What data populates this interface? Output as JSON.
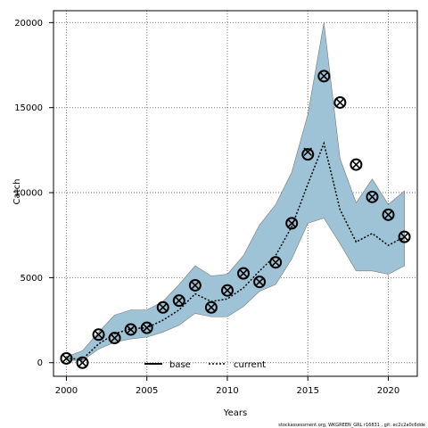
{
  "chart_data": {
    "type": "line",
    "title": "",
    "xlabel": "Years",
    "ylabel": "Catch",
    "xlim": [
      1999.2,
      2021.8
    ],
    "ylim": [
      -800,
      20700
    ],
    "x_ticks": [
      2000,
      2005,
      2010,
      2015,
      2020
    ],
    "y_ticks": [
      0,
      5000,
      10000,
      15000,
      20000
    ],
    "grid": true,
    "legend_position": "bottom-center",
    "colors": {
      "band": "#9fc3d6",
      "band_edge": "#777777",
      "line": "#000000",
      "grid": "#777777"
    },
    "years": [
      2000,
      2001,
      2002,
      2003,
      2004,
      2005,
      2006,
      2007,
      2008,
      2009,
      2010,
      2011,
      2012,
      2013,
      2014,
      2015,
      2016,
      2017,
      2018,
      2019,
      2020,
      2021
    ],
    "series": [
      {
        "name": "base",
        "style": "solid",
        "values": []
      },
      {
        "name": "current",
        "style": "dotted",
        "values": [
          250,
          200,
          1100,
          1700,
          2000,
          2050,
          2500,
          3100,
          4050,
          3600,
          3750,
          4400,
          5400,
          6300,
          8000,
          10500,
          12900,
          9000,
          7100,
          7600,
          6900,
          7400
        ]
      }
    ],
    "band": {
      "lower": [
        150,
        120,
        800,
        1200,
        1400,
        1500,
        1800,
        2200,
        2900,
        2700,
        2700,
        3300,
        4200,
        4600,
        6100,
        8200,
        8500,
        7000,
        5400,
        5400,
        5200,
        5700
      ],
      "upper": [
        350,
        700,
        1800,
        2800,
        3100,
        3100,
        3600,
        4600,
        5700,
        5100,
        5200,
        6300,
        8100,
        9300,
        11200,
        14600,
        20000,
        12000,
        9400,
        10800,
        9300,
        10100
      ]
    },
    "observed": {
      "circles": [
        250,
        0,
        1650,
        1450,
        1950,
        2050,
        3250,
        3650,
        4550,
        3250,
        4250,
        5250,
        4750,
        5900,
        8200,
        12250,
        16850,
        15300,
        11650,
        9750,
        8700,
        7400
      ],
      "crosses": [
        250,
        0,
        1650,
        1450,
        1950,
        2050,
        3250,
        3650,
        4550,
        3250,
        4250,
        5250,
        4750,
        5900,
        8200,
        12400,
        16850,
        15300,
        11650,
        9750,
        8700,
        7400
      ]
    },
    "watermark": "stockassessment.org, WKGREEN_GRL r16831 , git: ec2c2a0c6dde"
  }
}
